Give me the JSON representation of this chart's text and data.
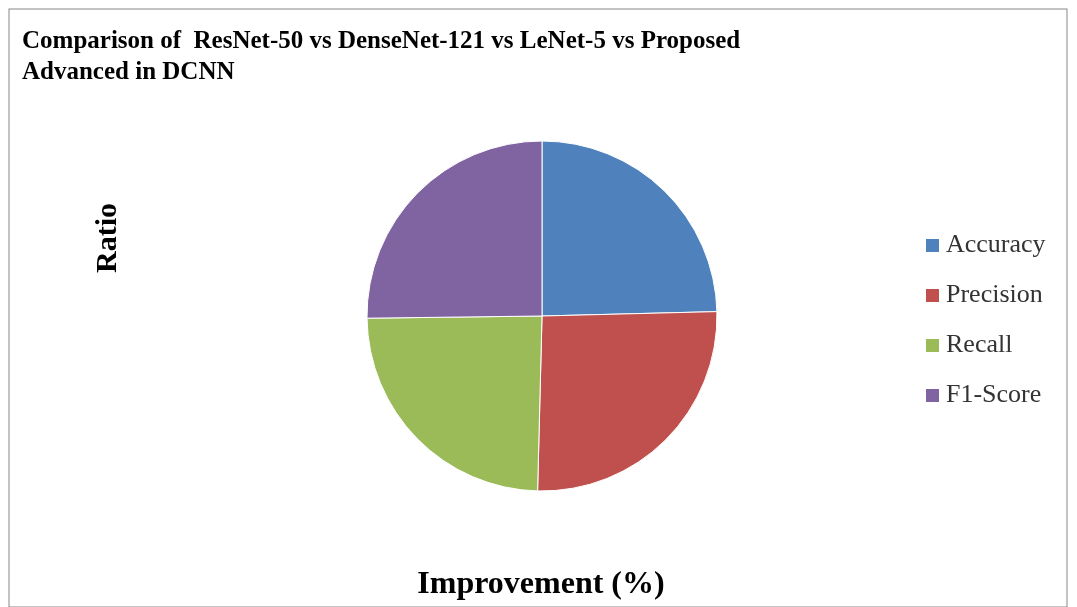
{
  "chart_data": {
    "type": "pie",
    "title": "Comparison of  ResNet-50 vs DenseNet-121 vs LeNet-5 vs Proposed Advanced in DCNN",
    "xlabel": "Improvement (%)",
    "ylabel": "Ratio",
    "categories": [
      "Accuracy",
      "Precision",
      "Recall",
      "F1-Score"
    ],
    "values": [
      24.6,
      25.8,
      24.4,
      25.2
    ],
    "colors": [
      "#4f81bd",
      "#c0504d",
      "#9bbb59",
      "#8064a2"
    ],
    "legend": "right"
  }
}
